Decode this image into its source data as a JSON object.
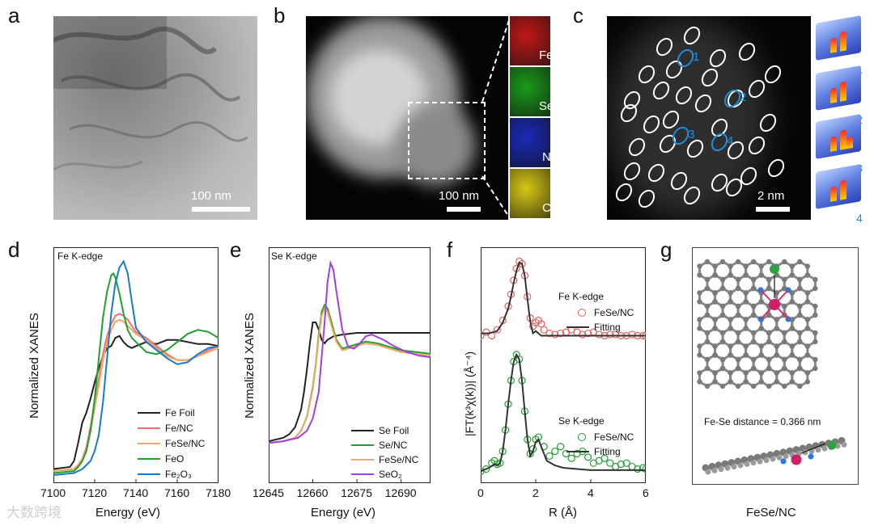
{
  "panels": {
    "a": {
      "label": "a",
      "scale_bar": "100 nm"
    },
    "b": {
      "label": "b",
      "scale_bar": "100 nm",
      "elements": [
        "Fe",
        "Se",
        "N",
        "C"
      ],
      "map_colors": [
        "#c01818",
        "#1a9a1a",
        "#1a2ab8",
        "#d8c814"
      ]
    },
    "c": {
      "label": "c",
      "scale_bar": "2 nm",
      "site_labels": [
        "1",
        "2",
        "3",
        "4"
      ]
    },
    "d": {
      "label": "d",
      "inset": "Fe K-edge"
    },
    "e": {
      "label": "e",
      "inset": "Se K-edge"
    },
    "f": {
      "label": "f",
      "tag_top": "Fe K-edge",
      "tag_bottom": "Se K-edge"
    },
    "g": {
      "label": "g",
      "distance_text": "Fe-Se distance = 0.366 nm",
      "caption": "FeSe/NC"
    }
  },
  "watermark": "大数跨境",
  "chart_data": [
    {
      "type": "line",
      "panel": "d",
      "title": "Fe K-edge",
      "xlabel": "Energy (eV)",
      "ylabel": "Normalized XANES",
      "xlim": [
        7100,
        7180
      ],
      "xticks": [
        "7100",
        "7120",
        "7140",
        "7160",
        "7180"
      ],
      "series": [
        {
          "name": "Fe Foil",
          "color": "#222222",
          "x": [
            7100,
            7108,
            7110,
            7112,
            7114,
            7116,
            7118,
            7120,
            7122,
            7124,
            7126,
            7128,
            7130,
            7132,
            7134,
            7136,
            7138,
            7140,
            7145,
            7150,
            7155,
            7160,
            7165,
            7170,
            7175,
            7180
          ],
          "y": [
            0.05,
            0.06,
            0.09,
            0.18,
            0.28,
            0.33,
            0.4,
            0.48,
            0.55,
            0.61,
            0.65,
            0.66,
            0.7,
            0.71,
            0.68,
            0.66,
            0.65,
            0.66,
            0.68,
            0.67,
            0.69,
            0.69,
            0.68,
            0.67,
            0.67,
            0.66
          ]
        },
        {
          "name": "Fe/NC",
          "color": "#f07070",
          "x": [
            7100,
            7110,
            7112,
            7114,
            7116,
            7118,
            7120,
            7122,
            7124,
            7126,
            7128,
            7130,
            7132,
            7134,
            7136,
            7138,
            7140,
            7145,
            7150,
            7155,
            7160,
            7165,
            7170,
            7175,
            7180
          ],
          "y": [
            0.04,
            0.05,
            0.07,
            0.1,
            0.16,
            0.26,
            0.38,
            0.5,
            0.62,
            0.71,
            0.77,
            0.81,
            0.82,
            0.81,
            0.79,
            0.76,
            0.73,
            0.7,
            0.66,
            0.62,
            0.59,
            0.59,
            0.61,
            0.64,
            0.66
          ]
        },
        {
          "name": "FeSe/NC",
          "color": "#f0a860",
          "x": [
            7100,
            7110,
            7112,
            7114,
            7116,
            7118,
            7120,
            7122,
            7124,
            7126,
            7128,
            7130,
            7132,
            7134,
            7136,
            7138,
            7140,
            7145,
            7150,
            7155,
            7160,
            7165,
            7170,
            7175,
            7180
          ],
          "y": [
            0.04,
            0.05,
            0.07,
            0.1,
            0.15,
            0.24,
            0.35,
            0.47,
            0.59,
            0.68,
            0.74,
            0.78,
            0.79,
            0.78,
            0.76,
            0.74,
            0.72,
            0.69,
            0.65,
            0.61,
            0.59,
            0.59,
            0.61,
            0.63,
            0.65
          ]
        },
        {
          "name": "FeO",
          "color": "#20a030",
          "x": [
            7100,
            7110,
            7112,
            7114,
            7116,
            7118,
            7120,
            7122,
            7124,
            7126,
            7128,
            7129,
            7130,
            7132,
            7134,
            7136,
            7138,
            7140,
            7145,
            7150,
            7155,
            7160,
            7165,
            7170,
            7175,
            7180
          ],
          "y": [
            0.03,
            0.04,
            0.06,
            0.09,
            0.14,
            0.24,
            0.4,
            0.6,
            0.8,
            0.93,
            1.01,
            1.02,
            1.0,
            0.92,
            0.82,
            0.74,
            0.7,
            0.68,
            0.63,
            0.62,
            0.64,
            0.68,
            0.72,
            0.74,
            0.73,
            0.7
          ]
        },
        {
          "name": "Fe₂O₃",
          "color": "#1a78c8",
          "x": [
            7100,
            7110,
            7114,
            7118,
            7120,
            7122,
            7124,
            7126,
            7128,
            7130,
            7132,
            7134,
            7136,
            7138,
            7140,
            7145,
            7150,
            7155,
            7160,
            7165,
            7170,
            7175,
            7180
          ],
          "y": [
            0.02,
            0.03,
            0.05,
            0.09,
            0.14,
            0.22,
            0.38,
            0.6,
            0.82,
            0.97,
            1.05,
            1.08,
            1.02,
            0.88,
            0.75,
            0.68,
            0.64,
            0.6,
            0.57,
            0.58,
            0.62,
            0.65,
            0.66
          ]
        }
      ]
    },
    {
      "type": "line",
      "panel": "e",
      "title": "Se K-edge",
      "xlabel": "Energy (eV)",
      "ylabel": "Normalized XANES",
      "xlim": [
        12645,
        12700
      ],
      "xticks": [
        "12645",
        "12660",
        "12675",
        "12690"
      ],
      "series": [
        {
          "name": "Se Foil",
          "color": "#222222",
          "x": [
            12645,
            12650,
            12652,
            12654,
            12656,
            12657,
            12658,
            12659,
            12660,
            12661,
            12662,
            12663,
            12664,
            12665,
            12667,
            12670,
            12675,
            12680,
            12690,
            12700
          ],
          "y": [
            0.04,
            0.06,
            0.08,
            0.12,
            0.22,
            0.32,
            0.45,
            0.6,
            0.72,
            0.72,
            0.68,
            0.62,
            0.6,
            0.62,
            0.64,
            0.65,
            0.66,
            0.66,
            0.66,
            0.66
          ]
        },
        {
          "name": "Se/NC",
          "color": "#20a030",
          "x": [
            12645,
            12650,
            12654,
            12656,
            12658,
            12660,
            12661,
            12662,
            12663,
            12664,
            12665,
            12666,
            12668,
            12670,
            12674,
            12678,
            12682,
            12686,
            12690,
            12700
          ],
          "y": [
            0.03,
            0.04,
            0.06,
            0.1,
            0.18,
            0.35,
            0.48,
            0.65,
            0.78,
            0.82,
            0.8,
            0.74,
            0.62,
            0.57,
            0.59,
            0.61,
            0.6,
            0.58,
            0.56,
            0.54
          ]
        },
        {
          "name": "FeSe/NC",
          "color": "#f0a860",
          "x": [
            12645,
            12650,
            12654,
            12656,
            12658,
            12660,
            12661,
            12662,
            12663,
            12664,
            12665,
            12666,
            12668,
            12670,
            12674,
            12678,
            12682,
            12686,
            12690,
            12700
          ],
          "y": [
            0.03,
            0.04,
            0.06,
            0.1,
            0.18,
            0.34,
            0.47,
            0.63,
            0.76,
            0.8,
            0.78,
            0.72,
            0.61,
            0.56,
            0.58,
            0.6,
            0.59,
            0.57,
            0.55,
            0.53
          ]
        },
        {
          "name": "SeO₂",
          "color": "#a040e0",
          "x": [
            12645,
            12650,
            12655,
            12658,
            12660,
            12662,
            12664,
            12665,
            12666,
            12667,
            12668,
            12670,
            12672,
            12674,
            12676,
            12678,
            12680,
            12684,
            12688,
            12692,
            12696,
            12700
          ],
          "y": [
            0.03,
            0.04,
            0.06,
            0.1,
            0.17,
            0.32,
            0.72,
            0.95,
            1.06,
            1.02,
            0.9,
            0.68,
            0.58,
            0.57,
            0.6,
            0.64,
            0.65,
            0.62,
            0.58,
            0.55,
            0.53,
            0.52
          ]
        }
      ]
    },
    {
      "type": "line",
      "panel": "f",
      "xlabel": "R (Å)",
      "ylabel": "|FT(k³χ(k))| (Å⁻⁴)",
      "xlim": [
        0,
        6
      ],
      "xticks": [
        "0",
        "2",
        "4",
        "6"
      ],
      "series": [
        {
          "name": "FeSe/NC",
          "group": "Fe K-edge",
          "style": "circles",
          "color": "#e86060",
          "x": [
            0.0,
            0.2,
            0.4,
            0.6,
            0.8,
            1.0,
            1.1,
            1.2,
            1.3,
            1.4,
            1.5,
            1.6,
            1.7,
            1.8,
            1.9,
            2.0,
            2.1,
            2.2,
            2.3,
            2.5,
            2.7,
            2.9,
            3.1,
            3.3,
            3.5,
            3.7,
            3.9,
            4.1,
            4.3,
            4.5,
            4.7,
            4.9,
            5.1,
            5.3,
            5.5,
            5.7,
            5.9,
            6.0
          ],
          "y": [
            0.55,
            0.58,
            0.55,
            0.6,
            0.68,
            0.8,
            0.9,
            1.02,
            1.12,
            1.18,
            1.16,
            1.06,
            0.88,
            0.7,
            0.63,
            0.66,
            0.68,
            0.65,
            0.6,
            0.57,
            0.56,
            0.57,
            0.58,
            0.6,
            0.58,
            0.56,
            0.57,
            0.58,
            0.56,
            0.55,
            0.56,
            0.56,
            0.55,
            0.55,
            0.56,
            0.55,
            0.55,
            0.55
          ]
        },
        {
          "name": "Fitting",
          "group": "Fe K-edge",
          "style": "line",
          "color": "#333333",
          "x": [
            0.0,
            0.3,
            0.6,
            0.8,
            1.0,
            1.1,
            1.2,
            1.3,
            1.4,
            1.5,
            1.6,
            1.7,
            1.8,
            1.9,
            2.0,
            2.1,
            2.2,
            2.5,
            3.0,
            3.5,
            4.0,
            4.5,
            5.0,
            5.5,
            6.0
          ],
          "y": [
            0.57,
            0.57,
            0.59,
            0.66,
            0.78,
            0.88,
            1.0,
            1.1,
            1.17,
            1.16,
            1.06,
            0.86,
            0.67,
            0.57,
            0.59,
            0.57,
            0.55,
            0.55,
            0.55,
            0.55,
            0.55,
            0.55,
            0.55,
            0.55,
            0.55
          ]
        },
        {
          "name": "FeSe/NC",
          "group": "Se K-edge",
          "style": "circles",
          "color": "#20a030",
          "x": [
            0.0,
            0.2,
            0.4,
            0.5,
            0.6,
            0.7,
            0.8,
            0.9,
            1.0,
            1.1,
            1.2,
            1.3,
            1.4,
            1.5,
            1.6,
            1.7,
            1.8,
            1.9,
            2.0,
            2.1,
            2.3,
            2.5,
            2.7,
            2.9,
            3.1,
            3.3,
            3.5,
            3.7,
            3.9,
            4.1,
            4.3,
            4.5,
            4.7,
            4.9,
            5.1,
            5.3,
            5.5,
            5.7,
            5.9,
            6.0
          ],
          "y": [
            0.03,
            0.05,
            0.1,
            0.12,
            0.09,
            0.1,
            0.2,
            0.38,
            0.6,
            0.8,
            0.96,
            1.02,
            0.98,
            0.8,
            0.54,
            0.3,
            0.18,
            0.22,
            0.3,
            0.32,
            0.24,
            0.16,
            0.2,
            0.24,
            0.18,
            0.14,
            0.18,
            0.2,
            0.15,
            0.1,
            0.12,
            0.14,
            0.1,
            0.07,
            0.09,
            0.1,
            0.07,
            0.05,
            0.06,
            0.05
          ]
        },
        {
          "name": "Fitting",
          "group": "Se K-edge",
          "style": "line",
          "color": "#333333",
          "x": [
            0.0,
            0.3,
            0.5,
            0.6,
            0.7,
            0.8,
            0.9,
            1.0,
            1.1,
            1.2,
            1.3,
            1.4,
            1.5,
            1.6,
            1.7,
            1.8,
            1.9,
            2.0,
            2.1,
            2.2,
            2.4,
            2.7,
            3.0,
            3.5,
            4.0,
            4.5,
            5.0,
            5.5,
            6.0
          ],
          "y": [
            0.03,
            0.06,
            0.09,
            0.08,
            0.1,
            0.2,
            0.38,
            0.6,
            0.8,
            0.96,
            1.02,
            0.98,
            0.8,
            0.54,
            0.3,
            0.16,
            0.2,
            0.28,
            0.3,
            0.24,
            0.12,
            0.08,
            0.06,
            0.05,
            0.04,
            0.04,
            0.04,
            0.04,
            0.04
          ]
        }
      ]
    }
  ]
}
